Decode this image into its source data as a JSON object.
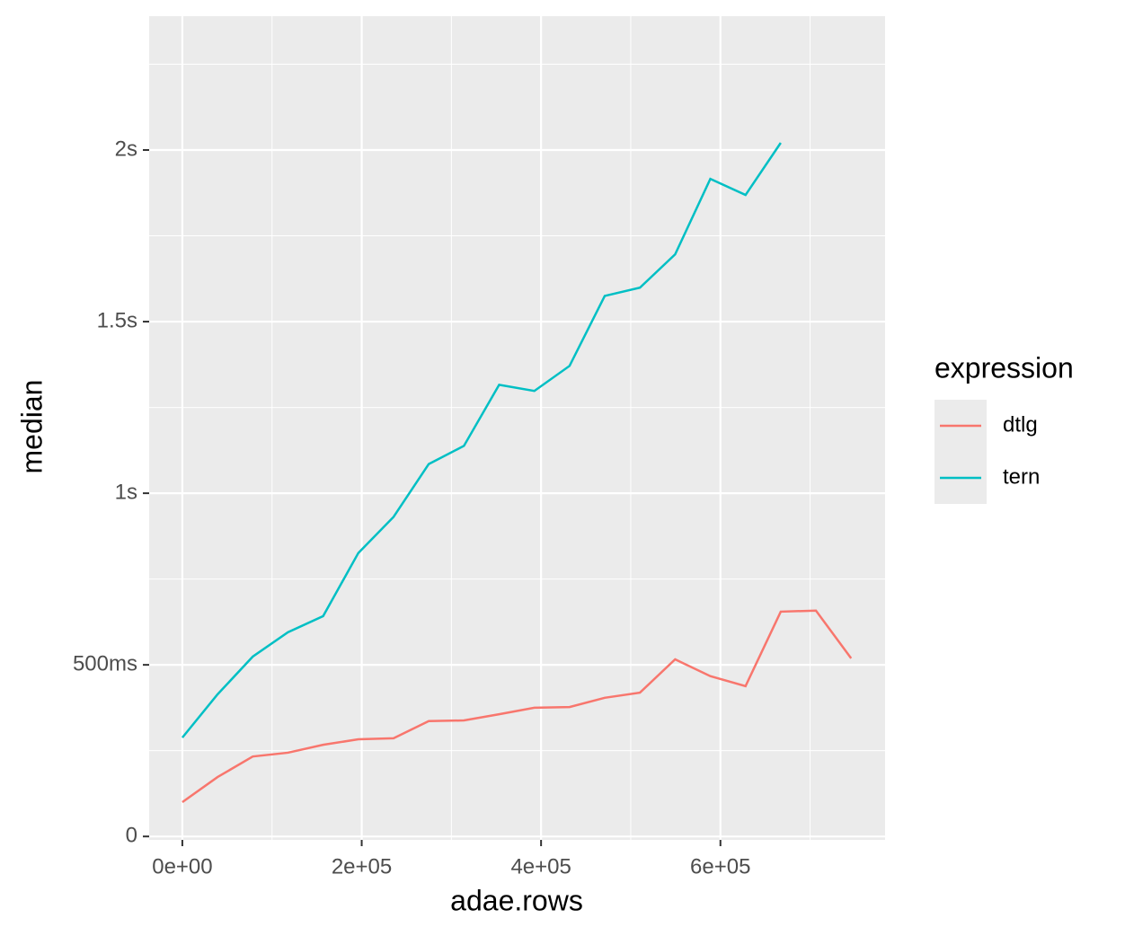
{
  "chart_data": {
    "type": "line",
    "x_label": "adae.rows",
    "y_label": "median",
    "legend_title": "expression",
    "x": [
      0,
      39250,
      78500,
      117750,
      157000,
      196250,
      235500,
      274750,
      314000,
      353250,
      392500,
      431750,
      471000,
      510250,
      549500,
      588750,
      628000,
      667250,
      706500,
      745750
    ],
    "series": [
      {
        "name": "dtlg",
        "color": "#F8766D",
        "values": [
          0.1,
          0.173,
          0.233,
          0.244,
          0.267,
          0.283,
          0.286,
          0.336,
          0.338,
          0.356,
          0.375,
          0.377,
          0.404,
          0.419,
          0.516,
          0.467,
          0.438,
          0.655,
          0.658,
          0.519
        ]
      },
      {
        "name": "tern",
        "color": "#00BFC4",
        "values": [
          0.288,
          0.414,
          0.524,
          0.595,
          0.642,
          0.826,
          0.931,
          1.085,
          1.138,
          1.316,
          1.298,
          1.371,
          1.575,
          1.599,
          1.696,
          1.916,
          1.869,
          2.021,
          null,
          null
        ]
      }
    ],
    "xlim": [
      -37000,
      783600
    ],
    "ylim": [
      -0.01,
      2.39
    ],
    "xticks": [
      {
        "value": 0,
        "label": "0e+00"
      },
      {
        "value": 200000,
        "label": "2e+05"
      },
      {
        "value": 400000,
        "label": "4e+05"
      },
      {
        "value": 600000,
        "label": "6e+05"
      }
    ],
    "yticks": [
      0,
      {
        "value": 0.5,
        "label": "500ms"
      },
      {
        "value": 1,
        "label": "1s"
      },
      {
        "value": 1.5,
        "label": "1.5s"
      },
      {
        "value": 2,
        "label": "2s"
      }
    ],
    "x_minor_breaks": [
      100000,
      300000,
      500000,
      700000
    ],
    "y_minor_breaks": [
      0.25,
      0.75,
      1.25,
      1.75,
      2.25
    ],
    "grid": true,
    "panel_color": "#EBEBEB",
    "legend_position": "right"
  }
}
